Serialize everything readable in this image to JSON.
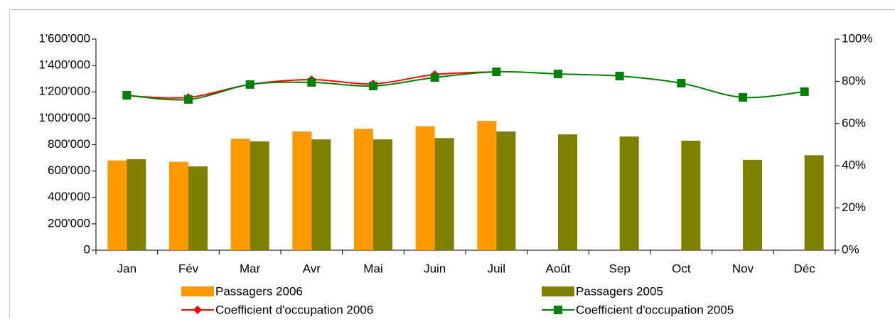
{
  "chart_data": {
    "type": "bar-line",
    "categories": [
      "Jan",
      "Fév",
      "Mar",
      "Avr",
      "Mai",
      "Juin",
      "Juil",
      "Août",
      "Sep",
      "Oct",
      "Nov",
      "Déc"
    ],
    "series": [
      {
        "name": "Passagers 2006",
        "type": "bar",
        "color": "#ff9900",
        "values": [
          680000,
          670000,
          845000,
          900000,
          920000,
          940000,
          980000,
          null,
          null,
          null,
          null,
          null
        ]
      },
      {
        "name": "Passagers 2005",
        "type": "bar",
        "color": "#808000",
        "values": [
          690000,
          635000,
          825000,
          840000,
          840000,
          850000,
          900000,
          878000,
          862000,
          830000,
          685000,
          720000
        ]
      },
      {
        "name": "Coefficient d'occupation 2006",
        "type": "line",
        "marker": "diamond",
        "axis": "y2",
        "color": "#ff0000",
        "values": [
          73.1,
          72.4,
          78.5,
          80.8,
          78.8,
          83.2,
          84.5,
          null,
          null,
          null,
          null,
          null
        ]
      },
      {
        "name": "Coefficient d'occupation 2005",
        "type": "line",
        "marker": "square",
        "axis": "y2",
        "color": "#008000",
        "values": [
          73.4,
          71.4,
          78.5,
          79.5,
          77.8,
          81.8,
          84.5,
          83.5,
          82.5,
          79.1,
          72.4,
          75.1
        ]
      }
    ],
    "ylim": [
      0,
      1600000
    ],
    "yticks": [
      0,
      {
        "value": 200000,
        "label": "200'000"
      },
      {
        "value": 400000,
        "label": "400'000"
      },
      {
        "value": 600000,
        "label": "600'000"
      },
      {
        "value": 800000,
        "label": "800'000"
      },
      {
        "value": 1000000,
        "label": "1'000'000"
      },
      {
        "value": 1200000,
        "label": "1'200'000"
      },
      {
        "value": 1400000,
        "label": "1'400'000"
      },
      {
        "value": 1600000,
        "label": "1'600'000"
      }
    ],
    "y2lim": [
      0,
      100
    ],
    "y2ticks": [
      {
        "value": 0,
        "label": "0%"
      },
      {
        "value": 20,
        "label": "20%"
      },
      {
        "value": 40,
        "label": "40%"
      },
      {
        "value": 60,
        "label": "60%"
      },
      {
        "value": 80,
        "label": "80%"
      },
      {
        "value": 100,
        "label": "100%"
      }
    ],
    "grid": false,
    "legend": "bottom"
  }
}
